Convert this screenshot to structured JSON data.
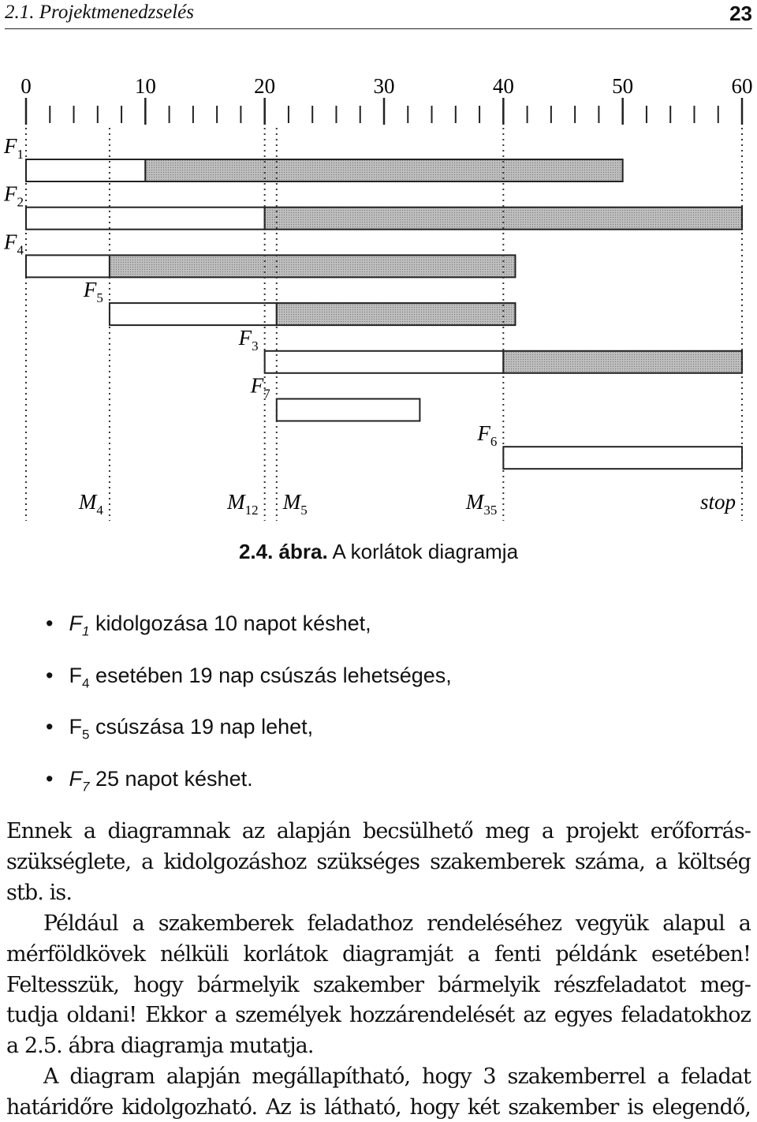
{
  "header": {
    "section": "2.1. Projektmenedzselés",
    "page": "23"
  },
  "chart_data": {
    "type": "gantt",
    "xlim": [
      0,
      60
    ],
    "xticks": [
      0,
      10,
      20,
      30,
      40,
      50,
      60
    ],
    "minor_xticks": [
      0,
      2,
      4,
      6,
      8,
      10,
      12,
      14,
      16,
      18,
      20,
      22,
      24,
      26,
      28,
      30,
      32,
      34,
      36,
      38,
      40,
      42,
      44,
      46,
      48,
      50,
      52,
      54,
      56,
      58,
      60
    ],
    "tasks": [
      {
        "name": "F",
        "sub": "1",
        "white": [
          0,
          10
        ],
        "gray": [
          10,
          50
        ]
      },
      {
        "name": "F",
        "sub": "2",
        "white": [
          0,
          20
        ],
        "gray": [
          20,
          60
        ]
      },
      {
        "name": "F",
        "sub": "4",
        "white": [
          0,
          7
        ],
        "gray": [
          7,
          41
        ]
      },
      {
        "name": "F",
        "sub": "5",
        "white": [
          7,
          21
        ],
        "gray": [
          21,
          41
        ]
      },
      {
        "name": "F",
        "sub": "3",
        "white": [
          20,
          40
        ],
        "gray": [
          40,
          60
        ]
      },
      {
        "name": "F",
        "sub": "7",
        "white": [
          21,
          33
        ]
      },
      {
        "name": "F",
        "sub": "6",
        "white": [
          40,
          60
        ]
      }
    ],
    "milestones": [
      {
        "name": "M",
        "sub": "4",
        "x": 7
      },
      {
        "name": "M",
        "sub": "12",
        "x": 20
      },
      {
        "name": "M",
        "sub": "5",
        "x": 21
      },
      {
        "name": "M",
        "sub": "35",
        "x": 40
      },
      {
        "name": "stop",
        "x": 60
      }
    ]
  },
  "caption": {
    "number": "2.4. ábra.",
    "text": "A korlátok diagramja"
  },
  "bullets": [
    {
      "var": "F",
      "sub": "1",
      "italic": true,
      "text": "kidolgozása 10 napot késhet,"
    },
    {
      "var": "F",
      "sub": "4",
      "italic": false,
      "text": "esetében 19 nap csúszás lehetséges,"
    },
    {
      "var": "F",
      "sub": "5",
      "italic": false,
      "text": "csúszása 19 nap lehet,"
    },
    {
      "var": "F",
      "sub": "7",
      "italic": true,
      "text": "25 napot késhet."
    }
  ],
  "paragraphs": [
    {
      "indent": false,
      "lines": [
        "Ennek a diagramnak az alapján becsülhető meg a projekt erőforrás-",
        "szükséglete, a kidolgozáshoz szükséges szakemberek száma, a költség",
        "stb. is."
      ]
    },
    {
      "indent": true,
      "lines": [
        "Például a szakemberek feladathoz rendeléséhez vegyük alapul a",
        "mérföldkövek nélküli korlátok diagramját a fenti példánk esetében!",
        "Feltesszük, hogy bármelyik szakember bármelyik részfeladatot meg-",
        "tudja oldani! Ekkor a személyek hozzárendelését az egyes feladatokhoz",
        "a 2.5. ábra diagramja mutatja."
      ]
    },
    {
      "indent": true,
      "continues": true,
      "lines": [
        "A diagram alapján megállapítható, hogy 3 szakemberrel a feladat",
        "határidőre kidolgozható. Az is látható, hogy két szakember is elegendő,"
      ]
    }
  ]
}
